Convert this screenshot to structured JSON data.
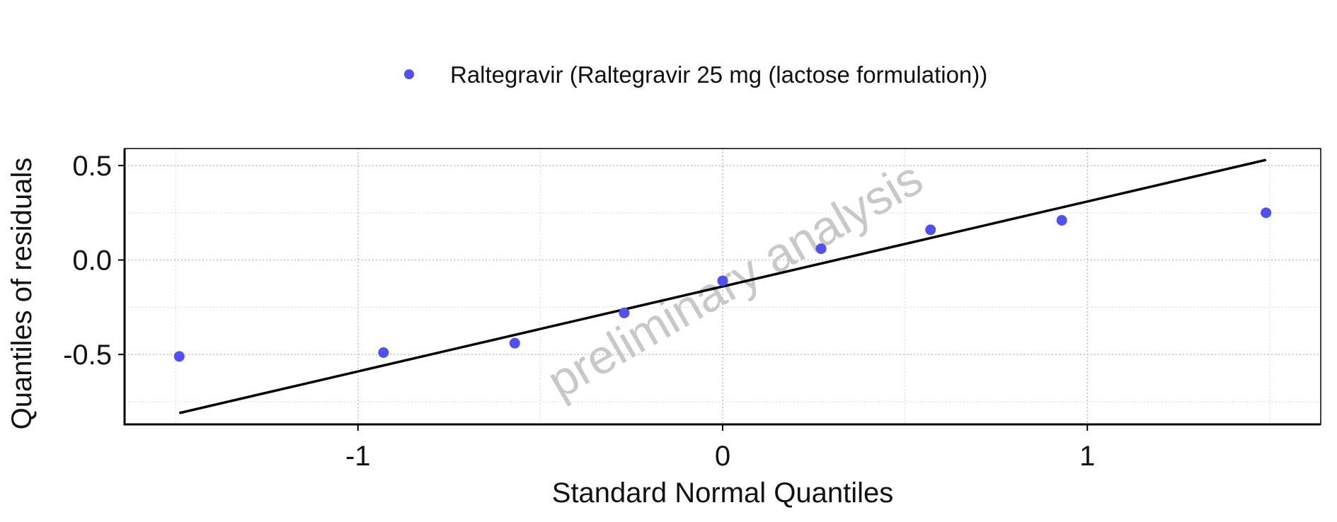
{
  "chart_data": {
    "type": "scatter",
    "title": "",
    "xlabel": "Standard Normal Quantiles",
    "ylabel": "Quantiles of residuals",
    "xlim": [
      -1.64,
      1.64
    ],
    "ylim": [
      -0.87,
      0.59
    ],
    "x_ticks": [
      -1,
      0,
      1
    ],
    "x_tick_labels": [
      "-1",
      "0",
      "1"
    ],
    "y_ticks": [
      -0.5,
      0.0,
      0.5
    ],
    "y_tick_labels": [
      "-0.5",
      "0.0",
      "0.5"
    ],
    "grid": true,
    "legend_position": "top",
    "watermark": "preliminary analysis",
    "series": [
      {
        "name": "Raltegravir (Raltegravir 25 mg (lactose formulation))",
        "color": "#5050F0",
        "x": [
          -1.49,
          -0.93,
          -0.57,
          -0.27,
          0.0,
          0.27,
          0.57,
          0.93,
          1.49
        ],
        "y": [
          -0.51,
          -0.49,
          -0.44,
          -0.28,
          -0.11,
          0.06,
          0.16,
          0.21,
          0.25
        ]
      }
    ],
    "reference_line": {
      "x": [
        -1.49,
        1.49
      ],
      "y": [
        -0.81,
        0.53
      ],
      "color": "#000000"
    }
  }
}
